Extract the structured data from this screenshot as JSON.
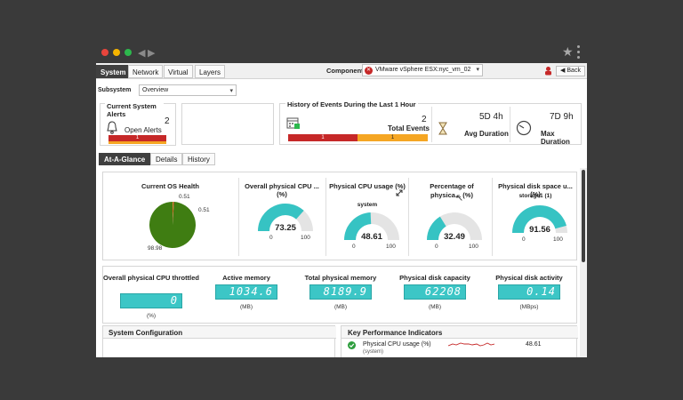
{
  "topbar": {
    "tabs": [
      "System",
      "Network",
      "Virtual",
      "Layers"
    ],
    "component_label": "Component",
    "component_value": "VMware vSphere ESX:nyc_vm_02",
    "back_label": "Back"
  },
  "subsystem": {
    "label": "Subsystem",
    "value": "Overview"
  },
  "alerts": {
    "title": "Current System Alerts",
    "count": "2",
    "label": "Open Alerts",
    "bar_critical": "1"
  },
  "history": {
    "title": "History of Events During the Last 1 Hour",
    "total_count": "2",
    "total_label": "Total Events",
    "bar_critical": "1",
    "bar_major": "1",
    "avg_value": "5D 4h",
    "avg_label": "Avg Duration",
    "max_value": "7D 9h",
    "max_label": "Max Duration"
  },
  "subtabs": [
    "At-A-Glance",
    "Details",
    "History"
  ],
  "os_health": {
    "title": "Current OS Health",
    "labels": [
      "0.51",
      "0.51",
      "98.98"
    ],
    "pie": [
      0.51,
      0.51,
      98.98
    ],
    "colors": {
      "main": "#3f7d12",
      "slice_a": "#d4a017",
      "slice_b": "#c62828"
    }
  },
  "gauges": [
    {
      "title": "Overall physical CPU ... (%)",
      "sublabel": "",
      "value": 73.25,
      "display": "73.25",
      "min": "0",
      "max": "100"
    },
    {
      "title": "Physical CPU usage (%)",
      "sublabel": "system",
      "value": 48.61,
      "display": "48.61",
      "min": "0",
      "max": "100"
    },
    {
      "title": "Percentage of physica... (%)",
      "sublabel": "",
      "value": 32.49,
      "display": "32.49",
      "min": "0",
      "max": "100"
    },
    {
      "title": "Physical disk space u... (%)",
      "sublabel": "storage1 (1)",
      "value": 91.56,
      "display": "91.56",
      "min": "0",
      "max": "100"
    }
  ],
  "gauge_colors": {
    "fill": "#36c3c3",
    "empty": "#e4e4e4"
  },
  "digitals": [
    {
      "title": "Overall physical CPU throttled",
      "value": "0",
      "unit": "(%)"
    },
    {
      "title": "Active memory",
      "value": "1034.6",
      "unit": "(MB)"
    },
    {
      "title": "Total physical memory",
      "value": "8189.9",
      "unit": "(MB)"
    },
    {
      "title": "Physical disk capacity",
      "value": "62208",
      "unit": "(MB)"
    },
    {
      "title": "Physical disk activity",
      "value": "0.14",
      "unit": "(MBps)"
    }
  ],
  "sysconfig": {
    "title": "System Configuration"
  },
  "kpi": {
    "title": "Key Performance Indicators",
    "row_label": "Physical CPU usage (%)",
    "row_sub": "(system)",
    "row_value": "48.61"
  }
}
